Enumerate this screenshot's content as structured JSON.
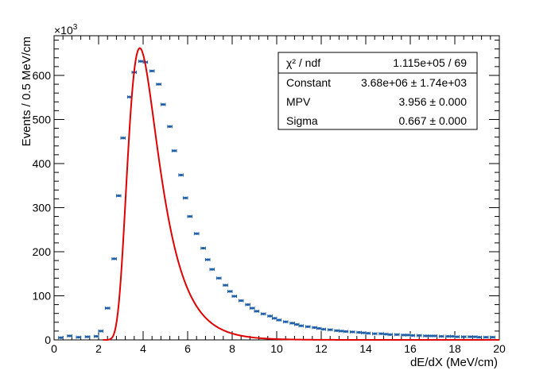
{
  "chart_data": {
    "type": "scatter",
    "title": "",
    "xlabel": "dE/dX (MeV/cm)",
    "ylabel": "Events / 0.5 MeV/cm",
    "y_multiplier": "×10³",
    "y_multiplier_base": "×10",
    "y_multiplier_exp": "3",
    "xlim": [
      0,
      20
    ],
    "ylim": [
      0,
      690
    ],
    "x_ticks": [
      0,
      2,
      4,
      6,
      8,
      10,
      12,
      14,
      16,
      18,
      20
    ],
    "y_ticks": [
      0,
      100,
      200,
      300,
      400,
      500,
      600
    ],
    "grid": false,
    "series": [
      {
        "kind": "data-points-with-xerrors",
        "color": "#1f5fa8",
        "x_error": 0.1,
        "points": [
          [
            0.3,
            5
          ],
          [
            0.7,
            9
          ],
          [
            1.1,
            6
          ],
          [
            1.5,
            7
          ],
          [
            1.9,
            8
          ],
          [
            2.1,
            20
          ],
          [
            2.4,
            72
          ],
          [
            2.7,
            184
          ],
          [
            2.9,
            327
          ],
          [
            3.1,
            458
          ],
          [
            3.4,
            551
          ],
          [
            3.6,
            607
          ],
          [
            3.9,
            632
          ],
          [
            4.1,
            630
          ],
          [
            4.4,
            610
          ],
          [
            4.7,
            580
          ],
          [
            4.9,
            534
          ],
          [
            5.2,
            484
          ],
          [
            5.4,
            429
          ],
          [
            5.7,
            374
          ],
          [
            5.9,
            322
          ],
          [
            6.1,
            280
          ],
          [
            6.4,
            241
          ],
          [
            6.7,
            208
          ],
          [
            6.9,
            182
          ],
          [
            7.1,
            160
          ],
          [
            7.4,
            140
          ],
          [
            7.7,
            124
          ],
          [
            7.9,
            110
          ],
          [
            8.1,
            99
          ],
          [
            8.4,
            89
          ],
          [
            8.7,
            80
          ],
          [
            8.9,
            72
          ],
          [
            9.1,
            65
          ],
          [
            9.4,
            59
          ],
          [
            9.7,
            54
          ],
          [
            9.9,
            49
          ],
          [
            10.1,
            45
          ],
          [
            10.4,
            41
          ],
          [
            10.7,
            38
          ],
          [
            10.9,
            35
          ],
          [
            11.1,
            32
          ],
          [
            11.4,
            30
          ],
          [
            11.7,
            28
          ],
          [
            11.9,
            26
          ],
          [
            12.1,
            24
          ],
          [
            12.4,
            23
          ],
          [
            12.7,
            21
          ],
          [
            12.9,
            20
          ],
          [
            13.1,
            19
          ],
          [
            13.4,
            18
          ],
          [
            13.7,
            17
          ],
          [
            13.9,
            16
          ],
          [
            14.1,
            15
          ],
          [
            14.4,
            14
          ],
          [
            14.7,
            14
          ],
          [
            14.9,
            13
          ],
          [
            15.1,
            12
          ],
          [
            15.4,
            12
          ],
          [
            15.7,
            11
          ],
          [
            15.9,
            11
          ],
          [
            16.1,
            10
          ],
          [
            16.4,
            10
          ],
          [
            16.7,
            9
          ],
          [
            16.9,
            9
          ],
          [
            17.1,
            9
          ],
          [
            17.4,
            8
          ],
          [
            17.7,
            8
          ],
          [
            17.9,
            8
          ],
          [
            18.1,
            7
          ],
          [
            18.4,
            7
          ],
          [
            18.7,
            7
          ],
          [
            18.9,
            7
          ],
          [
            19.1,
            6
          ],
          [
            19.4,
            6
          ],
          [
            19.7,
            6
          ]
        ]
      },
      {
        "kind": "fit-curve",
        "color": "#e00000",
        "model": "landau",
        "x_range": [
          2.2,
          20
        ],
        "peak_x": 3.85,
        "peak_y": 662
      }
    ],
    "stats_box": {
      "position": "top-right",
      "rows": [
        {
          "label": "χ² / ndf",
          "value": "1.115e+05 / 69"
        },
        {
          "label": "Constant",
          "value": "3.68e+06 ± 1.74e+03"
        },
        {
          "label": "MPV",
          "value": "3.956 ± 0.000"
        },
        {
          "label": "Sigma",
          "value": "0.667 ± 0.000"
        }
      ]
    }
  }
}
